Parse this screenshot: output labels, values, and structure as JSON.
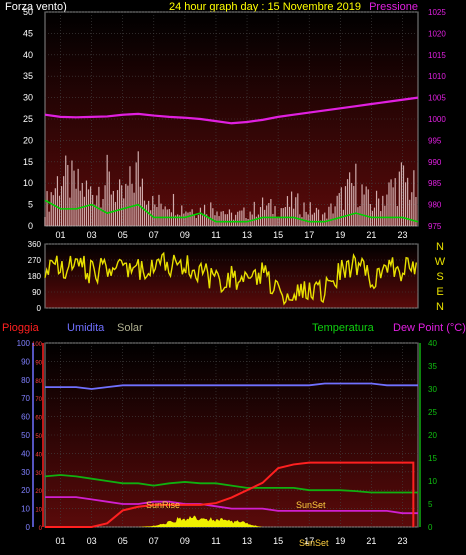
{
  "header": {
    "left_label": "Forza vento)",
    "center_label": "24 hour graph day : 15 Novembre 2019",
    "right_label": "Pressione"
  },
  "legend2": {
    "pioggia": "Pioggia",
    "umidita": "Umidita",
    "solar": "Solar",
    "temperatura": "Temperatura",
    "dewpoint": "Dew Point (°C)"
  },
  "compass": [
    "N",
    "W",
    "S",
    "E",
    "N"
  ],
  "annotations": {
    "sunrise": "SunRise",
    "sunset": "SunSet",
    "sunset2": "SunSet"
  },
  "colors": {
    "wind_gust": "#e8c8c8",
    "wind_avg": "#00d000",
    "pressure": "#e020e0",
    "direction": "#e8e000",
    "rain": "#ff2020",
    "humidity": "#7070ff",
    "temperature": "#10b010",
    "dewpoint": "#d020d0",
    "solar": "#f0f000",
    "plot_bg_top": "#000000",
    "plot_bg_bottom": "#5a0a0a"
  },
  "chart_data": [
    {
      "type": "line",
      "title": "24 hour graph day : 15 Novembre 2019",
      "x_ticks": [
        "01",
        "03",
        "05",
        "07",
        "09",
        "11",
        "13",
        "15",
        "17",
        "19",
        "21",
        "23"
      ],
      "y_left_ticks": [
        0,
        5,
        10,
        15,
        20,
        25,
        30,
        35,
        40,
        45,
        50
      ],
      "ylim_left": [
        0,
        50
      ],
      "y_right_ticks": [
        975,
        980,
        985,
        990,
        995,
        1000,
        1005,
        1010,
        1015,
        1020,
        1025
      ],
      "ylim_right": [
        975,
        1025
      ],
      "series": [
        {
          "key": "pressure",
          "axis": "right",
          "x": [
            0,
            1,
            2,
            3,
            4,
            5,
            6,
            7,
            8,
            9,
            10,
            11,
            12,
            13,
            14,
            15,
            16,
            17,
            18,
            19,
            20,
            21,
            22,
            23,
            24
          ],
          "values": [
            1001,
            1000.5,
            1000.4,
            1000.5,
            1000.6,
            1001,
            1001.2,
            1000.8,
            1000.5,
            1000.3,
            1000,
            999.5,
            999,
            999.3,
            999.8,
            1000.5,
            1001,
            1001.5,
            1002,
            1002.5,
            1003,
            1003.5,
            1004,
            1004.5,
            1005
          ]
        },
        {
          "key": "wind_gust",
          "axis": "left",
          "x": [
            0,
            1,
            2,
            3,
            4,
            5,
            6,
            7,
            8,
            9,
            10,
            11,
            12,
            13,
            14,
            15,
            16,
            17,
            18,
            19,
            20,
            21,
            22,
            23,
            24
          ],
          "values": [
            6,
            15,
            12,
            10,
            14,
            8,
            17,
            6,
            8,
            5,
            5,
            6,
            3,
            4,
            6,
            5,
            7,
            5,
            3,
            8,
            13,
            6,
            10,
            14,
            10
          ]
        },
        {
          "key": "wind_avg",
          "axis": "left",
          "x": [
            0,
            1,
            2,
            3,
            4,
            5,
            6,
            7,
            8,
            9,
            10,
            11,
            12,
            13,
            14,
            15,
            16,
            17,
            18,
            19,
            20,
            21,
            22,
            23,
            24
          ],
          "values": [
            6,
            4,
            4,
            5,
            3,
            4,
            5,
            2,
            2,
            2,
            3,
            1,
            1,
            1,
            2,
            2,
            2,
            1,
            1,
            2,
            3,
            2,
            2,
            2,
            1
          ]
        }
      ]
    },
    {
      "type": "scatter",
      "x_ticks": [],
      "y_ticks": [
        0,
        90,
        180,
        270,
        360
      ],
      "ylim": [
        0,
        360
      ],
      "series": [
        {
          "key": "direction",
          "x": [
            0,
            1,
            2,
            3,
            4,
            5,
            6,
            7,
            8,
            9,
            10,
            11,
            12,
            13,
            14,
            15,
            16,
            17,
            18,
            19,
            20,
            21,
            22,
            23,
            24
          ],
          "values": [
            240,
            220,
            250,
            200,
            230,
            260,
            210,
            240,
            250,
            230,
            210,
            150,
            180,
            140,
            200,
            100,
            80,
            120,
            90,
            200,
            250,
            170,
            230,
            210,
            240
          ]
        }
      ]
    },
    {
      "type": "line",
      "x_ticks": [
        "01",
        "03",
        "05",
        "07",
        "09",
        "11",
        "13",
        "15",
        "17",
        "19",
        "21",
        "23"
      ],
      "y_left_ticks": [
        0,
        10,
        20,
        30,
        40,
        50,
        60,
        70,
        80,
        90,
        100
      ],
      "ylim_left": [
        0,
        100
      ],
      "y_right_ticks": [
        0,
        5,
        10,
        15,
        20,
        25,
        30,
        35,
        40
      ],
      "ylim_right": [
        0,
        40
      ],
      "series": [
        {
          "key": "humidity",
          "axis": "left",
          "x": [
            0,
            1,
            2,
            3,
            4,
            5,
            6,
            7,
            8,
            9,
            10,
            11,
            12,
            13,
            14,
            15,
            16,
            17,
            18,
            19,
            20,
            21,
            22,
            23,
            24
          ],
          "values": [
            76,
            76,
            76,
            75,
            76,
            77,
            77,
            77,
            77,
            77,
            77,
            77,
            77,
            77,
            77,
            77,
            77,
            77,
            78,
            78,
            78,
            78,
            77,
            77,
            77
          ]
        },
        {
          "key": "temperature",
          "axis": "right",
          "x": [
            0,
            1,
            2,
            3,
            4,
            5,
            6,
            7,
            8,
            9,
            10,
            11,
            12,
            13,
            14,
            15,
            16,
            17,
            18,
            19,
            20,
            21,
            22,
            23,
            24
          ],
          "values": [
            11,
            11.3,
            11,
            10.5,
            10,
            9.5,
            9.5,
            9,
            9.5,
            9.8,
            9.5,
            9.5,
            9,
            8.5,
            8.5,
            8.5,
            8.5,
            8,
            8,
            8,
            7.8,
            7.5,
            7.5,
            7.5,
            7.5
          ]
        },
        {
          "key": "dewpoint",
          "axis": "right",
          "x": [
            0,
            1,
            2,
            3,
            4,
            5,
            6,
            7,
            8,
            9,
            10,
            11,
            12,
            13,
            14,
            15,
            16,
            17,
            18,
            19,
            20,
            21,
            22,
            23,
            24
          ],
          "values": [
            6.5,
            6.5,
            6.5,
            6,
            5.5,
            5,
            5,
            5.5,
            5.5,
            5,
            5,
            4.5,
            4,
            4,
            4,
            3.5,
            3.5,
            3.5,
            3.5,
            3.5,
            3.5,
            3.5,
            3.5,
            3,
            3
          ]
        },
        {
          "key": "rain",
          "axis": "left",
          "x": [
            0,
            1,
            2,
            3,
            4,
            5,
            6,
            7,
            8,
            9,
            10,
            11,
            12,
            13,
            14,
            15,
            16,
            17,
            18,
            19,
            20,
            21,
            22,
            23,
            23.7,
            23.7
          ],
          "values": [
            0,
            0,
            0,
            0,
            2,
            9,
            11,
            12,
            12,
            12,
            12,
            13,
            16,
            20,
            24,
            32,
            34,
            35,
            35,
            35,
            35,
            35,
            35,
            35,
            35,
            0
          ]
        },
        {
          "key": "solar",
          "axis": "left",
          "x": [
            6,
            6.8,
            7.5,
            8,
            8.5,
            9,
            9.5,
            10,
            10.5,
            11,
            11.5,
            12,
            12.5,
            13,
            13.5,
            14
          ],
          "values": [
            0,
            0.5,
            1.5,
            3,
            4.5,
            5,
            6,
            4.5,
            5,
            4,
            4.5,
            3,
            4,
            2,
            0.8,
            0
          ]
        }
      ]
    }
  ]
}
